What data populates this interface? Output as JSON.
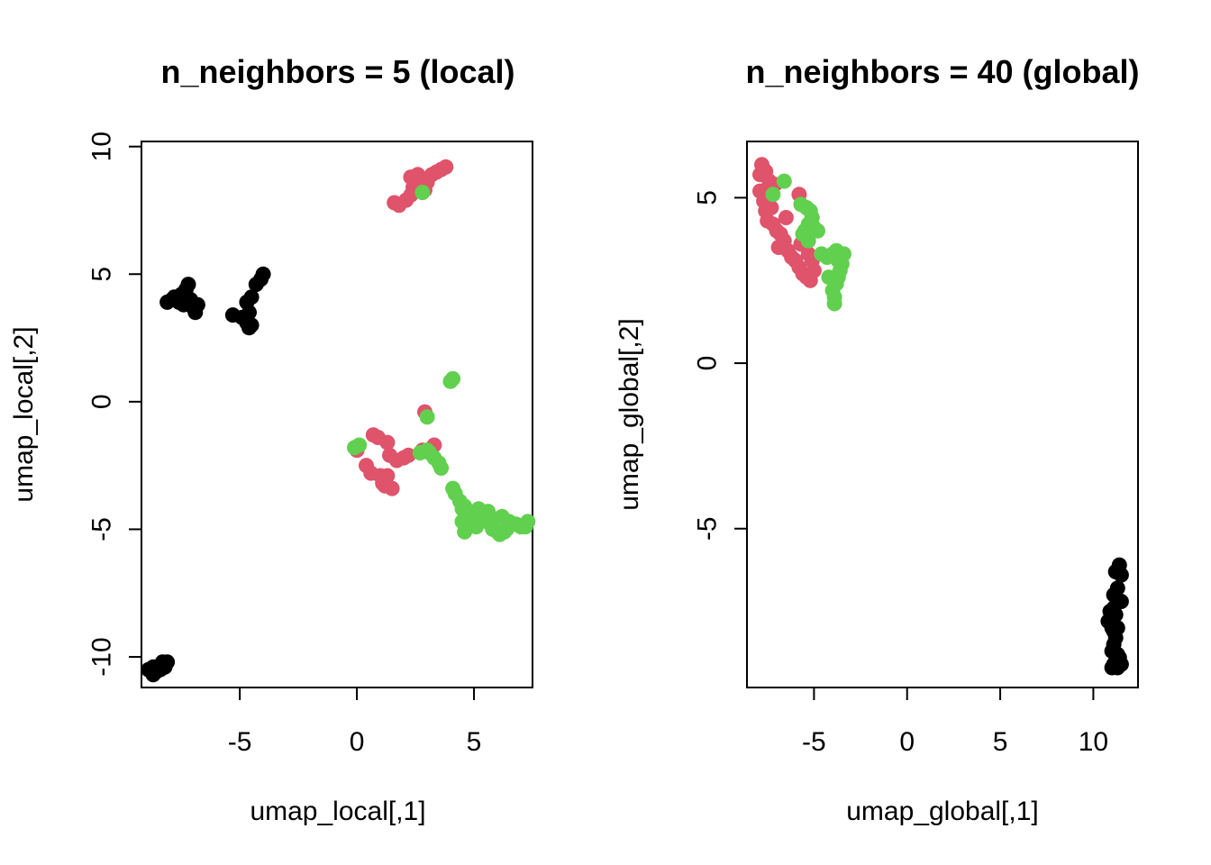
{
  "colors": {
    "group1": "#000000",
    "group2": "#DF536B",
    "group3": "#61D04F"
  },
  "chart_data": [
    {
      "type": "scatter",
      "title": "n_neighbors = 5 (local)",
      "xlabel": "umap_local[,1]",
      "ylabel": "umap_local[,2]",
      "xlim": [
        -9.2,
        7.5
      ],
      "ylim": [
        -11.2,
        10.2
      ],
      "xticks": [
        -5,
        0,
        5
      ],
      "yticks": [
        -10,
        -5,
        0,
        5,
        10
      ],
      "xtick_labels": [
        "-5",
        "0",
        "5"
      ],
      "ytick_labels": [
        "-10",
        "-5",
        "0",
        "5",
        "10"
      ],
      "grid": false,
      "series": [
        {
          "color": "#000000",
          "points": [
            [
              -8.9,
              -10.5
            ],
            [
              -8.7,
              -10.4
            ],
            [
              -8.6,
              -10.6
            ],
            [
              -8.5,
              -10.5
            ],
            [
              -8.3,
              -10.3
            ],
            [
              -8.2,
              -10.4
            ],
            [
              -8.3,
              -10.2
            ],
            [
              -8.1,
              -10.2
            ],
            [
              -8.4,
              -10.5
            ],
            [
              -8.7,
              -10.7
            ],
            [
              -8.1,
              3.9
            ],
            [
              -7.9,
              4.0
            ],
            [
              -7.8,
              4.1
            ],
            [
              -7.6,
              3.9
            ],
            [
              -7.5,
              4.2
            ],
            [
              -7.4,
              3.8
            ],
            [
              -7.3,
              4.4
            ],
            [
              -7.2,
              4.6
            ],
            [
              -7.1,
              4.0
            ],
            [
              -7.0,
              3.7
            ],
            [
              -6.9,
              3.5
            ],
            [
              -6.8,
              3.8
            ],
            [
              -7.6,
              4.1
            ],
            [
              -7.3,
              3.9
            ],
            [
              -5.3,
              3.4
            ],
            [
              -4.9,
              3.3
            ],
            [
              -4.7,
              3.1
            ],
            [
              -4.6,
              2.9
            ],
            [
              -4.5,
              3.0
            ],
            [
              -4.6,
              3.5
            ],
            [
              -4.5,
              4.1
            ],
            [
              -4.3,
              4.6
            ],
            [
              -4.1,
              4.8
            ],
            [
              -4.0,
              5.0
            ],
            [
              -4.7,
              3.9
            ]
          ]
        },
        {
          "color": "#DF536B",
          "points": [
            [
              1.6,
              7.8
            ],
            [
              1.8,
              7.7
            ],
            [
              2.1,
              7.9
            ],
            [
              2.3,
              8.1
            ],
            [
              2.4,
              8.4
            ],
            [
              2.3,
              8.8
            ],
            [
              2.6,
              8.9
            ],
            [
              2.8,
              8.7
            ],
            [
              3.0,
              8.6
            ],
            [
              3.2,
              8.9
            ],
            [
              3.4,
              9.0
            ],
            [
              3.6,
              9.1
            ],
            [
              3.8,
              9.2
            ],
            [
              2.9,
              8.3
            ],
            [
              0.0,
              -1.9
            ],
            [
              0.4,
              -2.5
            ],
            [
              0.6,
              -2.8
            ],
            [
              0.7,
              -1.3
            ],
            [
              0.9,
              -1.4
            ],
            [
              1.0,
              -2.9
            ],
            [
              1.1,
              -3.2
            ],
            [
              1.2,
              -3.3
            ],
            [
              1.3,
              -1.6
            ],
            [
              1.3,
              -2.9
            ],
            [
              1.4,
              -2.1
            ],
            [
              1.5,
              -3.4
            ],
            [
              1.7,
              -2.3
            ],
            [
              2.0,
              -2.2
            ],
            [
              2.2,
              -2.1
            ],
            [
              2.9,
              -0.4
            ],
            [
              3.3,
              -1.7
            ],
            [
              2.8,
              -1.9
            ]
          ]
        },
        {
          "color": "#61D04F",
          "points": [
            [
              2.8,
              8.2
            ],
            [
              4.0,
              0.8
            ],
            [
              4.1,
              0.9
            ],
            [
              3.0,
              -0.6
            ],
            [
              -0.1,
              -1.8
            ],
            [
              0.1,
              -1.7
            ],
            [
              2.7,
              -2.0
            ],
            [
              3.0,
              -1.9
            ],
            [
              3.1,
              -2.0
            ],
            [
              3.3,
              -2.2
            ],
            [
              3.5,
              -2.4
            ],
            [
              3.6,
              -2.6
            ],
            [
              4.1,
              -3.4
            ],
            [
              4.2,
              -3.6
            ],
            [
              4.4,
              -3.9
            ],
            [
              4.5,
              -4.2
            ],
            [
              4.6,
              -4.1
            ],
            [
              4.5,
              -4.7
            ],
            [
              4.6,
              -5.1
            ],
            [
              4.7,
              -4.3
            ],
            [
              5.0,
              -4.5
            ],
            [
              5.1,
              -4.9
            ],
            [
              5.2,
              -4.2
            ],
            [
              5.3,
              -4.6
            ],
            [
              5.5,
              -4.5
            ],
            [
              5.6,
              -4.3
            ],
            [
              5.7,
              -4.8
            ],
            [
              5.8,
              -5.0
            ],
            [
              5.9,
              -4.6
            ],
            [
              6.0,
              -5.1
            ],
            [
              6.1,
              -5.2
            ],
            [
              6.2,
              -4.5
            ],
            [
              6.3,
              -5.1
            ],
            [
              6.4,
              -5.0
            ],
            [
              6.5,
              -4.7
            ],
            [
              6.8,
              -4.8
            ],
            [
              7.0,
              -4.9
            ],
            [
              7.2,
              -4.8
            ],
            [
              7.3,
              -4.7
            ],
            [
              7.2,
              -4.9
            ]
          ]
        }
      ]
    },
    {
      "type": "scatter",
      "title": "n_neighbors = 40 (global)",
      "xlabel": "umap_global[,1]",
      "ylabel": "umap_global[,2]",
      "xlim": [
        -8.6,
        12.4
      ],
      "ylim": [
        -9.8,
        6.7
      ],
      "xticks": [
        -5,
        0,
        5,
        10
      ],
      "yticks": [
        -5,
        0,
        5
      ],
      "xtick_labels": [
        "-5",
        "0",
        "5",
        "10"
      ],
      "ytick_labels": [
        "-5",
        "0",
        "5"
      ],
      "grid": false,
      "series": [
        {
          "color": "#DF536B",
          "points": [
            [
              -7.9,
              5.7
            ],
            [
              -7.8,
              6.0
            ],
            [
              -7.6,
              5.8
            ],
            [
              -7.4,
              5.5
            ],
            [
              -7.3,
              5.3
            ],
            [
              -7.1,
              5.4
            ],
            [
              -7.9,
              5.2
            ],
            [
              -7.7,
              4.9
            ],
            [
              -7.6,
              4.6
            ],
            [
              -7.5,
              4.3
            ],
            [
              -7.2,
              4.2
            ],
            [
              -7.0,
              4.0
            ],
            [
              -6.8,
              3.9
            ],
            [
              -6.6,
              3.7
            ],
            [
              -6.4,
              3.4
            ],
            [
              -6.2,
              3.2
            ],
            [
              -6.0,
              3.1
            ],
            [
              -5.8,
              2.9
            ],
            [
              -5.6,
              2.7
            ],
            [
              -5.4,
              2.6
            ],
            [
              -5.2,
              2.5
            ],
            [
              -5.0,
              2.8
            ],
            [
              -5.3,
              3.3
            ],
            [
              -5.7,
              3.6
            ],
            [
              -5.8,
              5.1
            ],
            [
              -6.9,
              3.5
            ],
            [
              -7.3,
              4.7
            ],
            [
              -6.5,
              4.4
            ],
            [
              -5.5,
              3.9
            ],
            [
              -5.1,
              3.1
            ]
          ]
        },
        {
          "color": "#61D04F",
          "points": [
            [
              -6.6,
              5.5
            ],
            [
              -7.2,
              5.1
            ],
            [
              -5.7,
              4.8
            ],
            [
              -5.4,
              4.7
            ],
            [
              -5.2,
              4.6
            ],
            [
              -5.1,
              4.4
            ],
            [
              -5.3,
              4.2
            ],
            [
              -5.5,
              4.0
            ],
            [
              -5.0,
              4.1
            ],
            [
              -4.8,
              4.0
            ],
            [
              -5.6,
              3.9
            ],
            [
              -5.3,
              3.7
            ],
            [
              -4.6,
              3.3
            ],
            [
              -4.3,
              3.2
            ],
            [
              -4.0,
              3.3
            ],
            [
              -3.8,
              3.4
            ],
            [
              -3.6,
              3.3
            ],
            [
              -3.4,
              3.3
            ],
            [
              -3.5,
              3.0
            ],
            [
              -3.6,
              2.8
            ],
            [
              -3.7,
              2.6
            ],
            [
              -3.8,
              2.4
            ],
            [
              -4.0,
              2.2
            ],
            [
              -3.9,
              2.0
            ],
            [
              -3.9,
              1.8
            ],
            [
              -4.2,
              2.6
            ],
            [
              -3.7,
              3.1
            ]
          ]
        },
        {
          "color": "#000000",
          "points": [
            [
              11.2,
              -6.3
            ],
            [
              11.4,
              -6.1
            ],
            [
              11.5,
              -6.4
            ],
            [
              11.3,
              -6.8
            ],
            [
              11.1,
              -7.0
            ],
            [
              11.3,
              -7.2
            ],
            [
              11.5,
              -7.2
            ],
            [
              11.1,
              -7.4
            ],
            [
              10.9,
              -7.5
            ],
            [
              11.2,
              -7.6
            ],
            [
              10.8,
              -7.8
            ],
            [
              11.0,
              -8.0
            ],
            [
              11.3,
              -8.0
            ],
            [
              11.2,
              -8.3
            ],
            [
              11.1,
              -8.5
            ],
            [
              11.0,
              -8.7
            ],
            [
              11.3,
              -8.8
            ],
            [
              11.4,
              -8.9
            ],
            [
              11.1,
              -9.1
            ],
            [
              11.3,
              -9.2
            ],
            [
              11.5,
              -9.1
            ],
            [
              11.0,
              -9.2
            ],
            [
              11.2,
              -9.0
            ],
            [
              11.1,
              -8.1
            ]
          ]
        }
      ]
    }
  ]
}
